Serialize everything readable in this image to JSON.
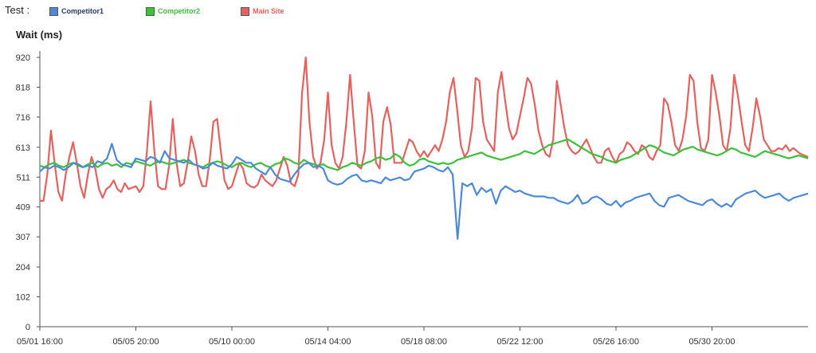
{
  "legend": {
    "title": "Test :",
    "items": [
      {
        "label": "Competitor1",
        "color": "#4A89DC"
      },
      {
        "label": "Competitor2",
        "color": "#3CC13B"
      },
      {
        "label": "Main Site",
        "color": "#E8605E"
      }
    ]
  },
  "chart_data": {
    "type": "line",
    "ylabel": "Wait (ms)",
    "ylim": [
      0,
      920
    ],
    "yticks": [
      0,
      102,
      204,
      307,
      409,
      511,
      613,
      716,
      818,
      920
    ],
    "xlabels": [
      "05/01 16:00",
      "05/05 20:00",
      "05/10 00:00",
      "05/14 04:00",
      "05/18 08:00",
      "05/22 12:00",
      "05/26 16:00",
      "05/30 20:00"
    ],
    "xlabel_index": [
      0,
      20,
      40,
      60,
      80,
      100,
      120,
      140
    ],
    "grid": false,
    "series": [
      {
        "name": "Competitor1",
        "color": "#4A89DC",
        "values": [
          530,
          545,
          540,
          550,
          545,
          535,
          545,
          560,
          555,
          545,
          550,
          545,
          565,
          560,
          575,
          625,
          570,
          555,
          550,
          545,
          575,
          570,
          565,
          580,
          575,
          560,
          600,
          575,
          570,
          565,
          560,
          570,
          555,
          550,
          540,
          545,
          560,
          550,
          545,
          540,
          555,
          580,
          570,
          560,
          560,
          540,
          530,
          520,
          545,
          520,
          505,
          500,
          495,
          520,
          540,
          555,
          560,
          545,
          550,
          540,
          500,
          490,
          485,
          490,
          505,
          515,
          520,
          500,
          495,
          500,
          495,
          490,
          510,
          500,
          505,
          510,
          500,
          505,
          530,
          535,
          540,
          550,
          545,
          535,
          530,
          545,
          520,
          300,
          490,
          480,
          490,
          450,
          475,
          460,
          470,
          420,
          465,
          480,
          470,
          460,
          465,
          455,
          450,
          445,
          445,
          445,
          440,
          440,
          430,
          425,
          420,
          430,
          450,
          420,
          425,
          440,
          445,
          435,
          420,
          415,
          430,
          410,
          425,
          430,
          440,
          445,
          450,
          455,
          430,
          415,
          410,
          440,
          445,
          450,
          440,
          430,
          425,
          420,
          415,
          430,
          435,
          420,
          410,
          420,
          410,
          435,
          445,
          455,
          460,
          465,
          450,
          440,
          445,
          450,
          455,
          440,
          430,
          440,
          445,
          450,
          455
        ]
      },
      {
        "name": "Competitor2",
        "color": "#3CC13B",
        "values": [
          550,
          545,
          555,
          560,
          550,
          545,
          555,
          560,
          550,
          545,
          555,
          560,
          545,
          555,
          560,
          550,
          555,
          545,
          560,
          555,
          565,
          560,
          555,
          550,
          560,
          565,
          560,
          555,
          560,
          565,
          570,
          560,
          555,
          550,
          545,
          555,
          560,
          565,
          560,
          550,
          545,
          555,
          560,
          550,
          545,
          555,
          560,
          550,
          545,
          555,
          560,
          575,
          570,
          560,
          555,
          570,
          560,
          555,
          550,
          555,
          545,
          540,
          535,
          545,
          550,
          560,
          555,
          550,
          560,
          565,
          575,
          580,
          570,
          575,
          590,
          580,
          560,
          550,
          555,
          570,
          575,
          565,
          560,
          555,
          560,
          555,
          560,
          570,
          575,
          580,
          585,
          590,
          595,
          585,
          580,
          575,
          570,
          575,
          580,
          585,
          590,
          600,
          595,
          590,
          600,
          610,
          620,
          625,
          630,
          635,
          640,
          630,
          620,
          610,
          600,
          590,
          585,
          580,
          570,
          565,
          560,
          570,
          575,
          580,
          590,
          600,
          610,
          620,
          615,
          605,
          595,
          590,
          585,
          595,
          605,
          610,
          615,
          605,
          600,
          595,
          590,
          585,
          590,
          600,
          610,
          605,
          595,
          590,
          585,
          580,
          590,
          600,
          595,
          590,
          585,
          580,
          575,
          580,
          585,
          580,
          575
        ]
      },
      {
        "name": "Main Site",
        "color": "#E8605E",
        "values": [
          430,
          430,
          520,
          670,
          560,
          460,
          430,
          520,
          580,
          630,
          560,
          480,
          440,
          520,
          580,
          540,
          470,
          440,
          470,
          480,
          500,
          470,
          460,
          490,
          470,
          475,
          480,
          460,
          480,
          600,
          770,
          600,
          480,
          470,
          470,
          550,
          710,
          560,
          480,
          490,
          560,
          650,
          600,
          520,
          480,
          480,
          570,
          700,
          710,
          600,
          500,
          470,
          480,
          520,
          560,
          540,
          490,
          480,
          475,
          485,
          520,
          500,
          490,
          480,
          500,
          540,
          580,
          550,
          490,
          480,
          520,
          800,
          920,
          700,
          580,
          540,
          560,
          640,
          800,
          620,
          560,
          540,
          580,
          700,
          860,
          700,
          550,
          540,
          600,
          800,
          720,
          560,
          540,
          700,
          750,
          690,
          560,
          560,
          560,
          600,
          640,
          630,
          600,
          580,
          600,
          580,
          600,
          620,
          600,
          640,
          700,
          800,
          850,
          740,
          620,
          580,
          600,
          680,
          850,
          840,
          700,
          640,
          620,
          600,
          800,
          870,
          770,
          680,
          640,
          660,
          720,
          780,
          850,
          830,
          760,
          670,
          620,
          590,
          580,
          640,
          840,
          760,
          680,
          620,
          600,
          590,
          600,
          620,
          640,
          610,
          580,
          560,
          560,
          600,
          610,
          580,
          560,
          590,
          600,
          630,
          620,
          600,
          590,
          620,
          610,
          580,
          570,
          600,
          620,
          780,
          760,
          700,
          620,
          600,
          640,
          720,
          860,
          840,
          700,
          610,
          600,
          640,
          860,
          800,
          720,
          620,
          600,
          680,
          860,
          790,
          700,
          620,
          600,
          680,
          780,
          720,
          640,
          620,
          600,
          600,
          610,
          605,
          620,
          600,
          610,
          600,
          590,
          585,
          580
        ]
      }
    ]
  }
}
